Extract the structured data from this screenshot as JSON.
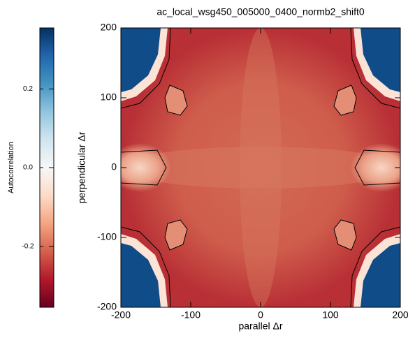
{
  "chart_data": {
    "type": "heatmap",
    "title": "ac_local_wsg450_005000_0400_normb2_shift0",
    "x_label": "parallel Δr",
    "y_label": "perpendicular Δr",
    "colorbar_label": "Autocorrelation",
    "colormap": "RdBu",
    "xlim": [
      -200,
      200
    ],
    "xticks": [
      -200,
      -100,
      0,
      100,
      200
    ],
    "ylim": [
      -200,
      200
    ],
    "yticks": [
      -200,
      -100,
      0,
      100,
      200
    ],
    "clim": [
      -0.355,
      0.355
    ],
    "cticks": [
      -0.2,
      {
        "value": 0,
        "label": "0.0"
      },
      0.2
    ]
  }
}
